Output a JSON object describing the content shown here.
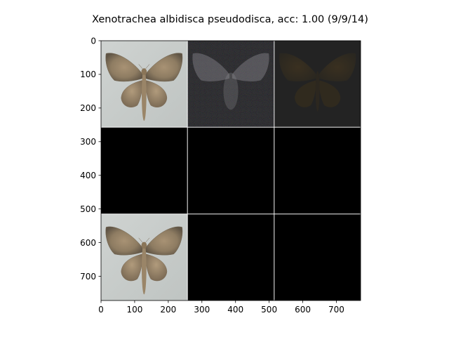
{
  "chart_data": {
    "type": "image_grid",
    "title": "Xenotrachea albidisca pseudodisca, acc: 1.00 (9/9/14)",
    "xlabel": "",
    "ylabel": "",
    "xlim": [
      0,
      772
    ],
    "ylim": [
      772,
      0
    ],
    "x_ticks": [
      0,
      100,
      200,
      300,
      400,
      500,
      600,
      700
    ],
    "y_ticks": [
      0,
      100,
      200,
      300,
      400,
      500,
      600,
      700
    ],
    "grid": {
      "rows": 3,
      "cols": 3,
      "tile_size": 256,
      "separator": 2
    },
    "tiles": [
      {
        "row": 0,
        "col": 0,
        "content": "moth-photo"
      },
      {
        "row": 0,
        "col": 1,
        "content": "noisy-saliency-map"
      },
      {
        "row": 0,
        "col": 2,
        "content": "dark-moth-attribution"
      },
      {
        "row": 1,
        "col": 0,
        "content": "black"
      },
      {
        "row": 1,
        "col": 1,
        "content": "black"
      },
      {
        "row": 1,
        "col": 2,
        "content": "black"
      },
      {
        "row": 2,
        "col": 0,
        "content": "moth-photo"
      },
      {
        "row": 2,
        "col": 1,
        "content": "black"
      },
      {
        "row": 2,
        "col": 2,
        "content": "black"
      }
    ]
  },
  "colors": {
    "background": "#ffffff",
    "separator": "#ffffff",
    "empty_tile": "#000000"
  }
}
